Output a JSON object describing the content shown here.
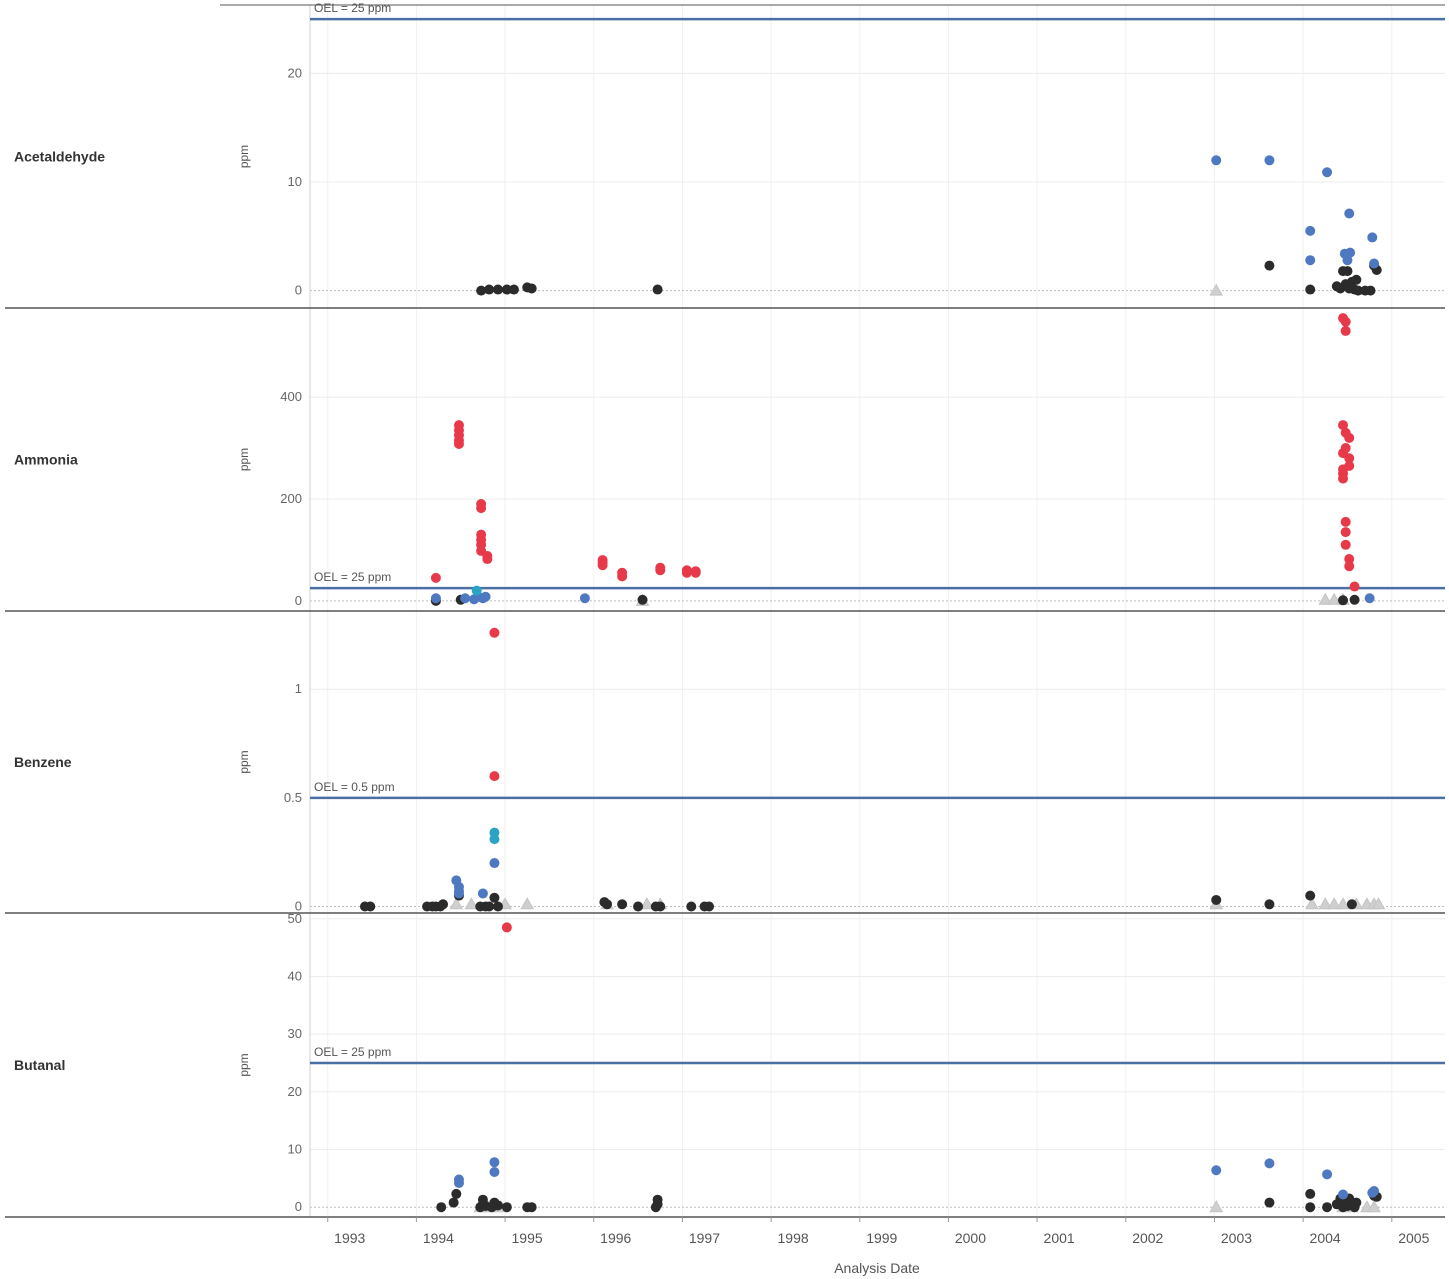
{
  "chart_data": {
    "type": "scatter",
    "xlabel": "Analysis Date",
    "xlim": [
      1992.8,
      2005.6
    ],
    "x_ticks": [
      "1993",
      "1994",
      "1995",
      "1996",
      "1997",
      "1998",
      "1999",
      "2000",
      "2001",
      "2002",
      "2003",
      "2004",
      "2005"
    ],
    "grid": true,
    "colors": {
      "black": "#2b2b2b",
      "blue": "#4e79c0",
      "teal": "#2aa3c4",
      "red": "#e8394a",
      "gray": "#cfcfcf",
      "oel_line": "#4a6fa5"
    },
    "panels": [
      {
        "name": "Acetaldehyde",
        "ylabel": "ppm",
        "ylim": [
          -1.6,
          26.3
        ],
        "yticks": [
          0,
          10,
          20
        ],
        "oel": 25,
        "oel_label": "OEL = 25 ppm",
        "series": {
          "black": [
            [
              1994.73,
              0
            ],
            [
              1994.82,
              0.1
            ],
            [
              1994.92,
              0.1
            ],
            [
              1995.02,
              0.1
            ],
            [
              1995.1,
              0.1
            ],
            [
              1995.25,
              0.3
            ],
            [
              1995.3,
              0.2
            ],
            [
              1996.72,
              0.1
            ],
            [
              2003.62,
              2.3
            ],
            [
              2004.08,
              0.1
            ],
            [
              2004.38,
              0.4
            ],
            [
              2004.42,
              0.2
            ],
            [
              2004.45,
              1.8
            ],
            [
              2004.48,
              0.6
            ],
            [
              2004.5,
              1.8
            ],
            [
              2004.52,
              0.2
            ],
            [
              2004.55,
              0.8
            ],
            [
              2004.58,
              0.1
            ],
            [
              2004.6,
              1
            ],
            [
              2004.62,
              0
            ],
            [
              2004.7,
              0
            ],
            [
              2004.76,
              0
            ],
            [
              2004.8,
              2.3
            ],
            [
              2004.83,
              1.9
            ]
          ],
          "blue": [
            [
              2003.02,
              12
            ],
            [
              2003.62,
              12
            ],
            [
              2004.08,
              5.5
            ],
            [
              2004.08,
              2.8
            ],
            [
              2004.27,
              10.9
            ],
            [
              2004.47,
              3.4
            ],
            [
              2004.5,
              2.8
            ],
            [
              2004.52,
              7.1
            ],
            [
              2004.53,
              3.5
            ],
            [
              2004.78,
              4.9
            ],
            [
              2004.8,
              2.5
            ]
          ],
          "teal": [],
          "red": [],
          "gray": [
            [
              2003.02,
              0
            ]
          ]
        }
      },
      {
        "name": "Ammonia",
        "ylabel": "ppm",
        "ylim": [
          -20,
          575
        ],
        "yticks": [
          0,
          200,
          400
        ],
        "oel": 25,
        "oel_label": "OEL = 25 ppm",
        "series": {
          "black": [
            [
              1994.22,
              0
            ],
            [
              1994.5,
              2
            ],
            [
              1996.55,
              2
            ],
            [
              2004.45,
              1
            ],
            [
              2004.58,
              2
            ]
          ],
          "blue": [
            [
              1994.22,
              5
            ],
            [
              1994.55,
              5
            ],
            [
              1994.65,
              3
            ],
            [
              1994.7,
              8
            ],
            [
              1994.75,
              5
            ],
            [
              1994.78,
              8
            ],
            [
              1995.9,
              5
            ],
            [
              2004.75,
              5
            ]
          ],
          "teal": [
            [
              1994.68,
              20
            ]
          ],
          "red": [
            [
              1994.22,
              45
            ],
            [
              1994.48,
              345
            ],
            [
              1994.48,
              335
            ],
            [
              1994.48,
              325
            ],
            [
              1994.48,
              315
            ],
            [
              1994.48,
              308
            ],
            [
              1994.73,
              190
            ],
            [
              1994.73,
              182
            ],
            [
              1994.73,
              130
            ],
            [
              1994.73,
              120
            ],
            [
              1994.73,
              110
            ],
            [
              1994.73,
              98
            ],
            [
              1994.8,
              88
            ],
            [
              1994.8,
              82
            ],
            [
              1996.1,
              80
            ],
            [
              1996.1,
              75
            ],
            [
              1996.1,
              70
            ],
            [
              1996.32,
              55
            ],
            [
              1996.32,
              48
            ],
            [
              1996.75,
              65
            ],
            [
              1996.75,
              60
            ],
            [
              1997.05,
              60
            ],
            [
              1997.05,
              55
            ],
            [
              1997.15,
              58
            ],
            [
              1997.15,
              55
            ],
            [
              2004.45,
              555
            ],
            [
              2004.48,
              548
            ],
            [
              2004.48,
              530
            ],
            [
              2004.45,
              345
            ],
            [
              2004.48,
              330
            ],
            [
              2004.52,
              320
            ],
            [
              2004.48,
              300
            ],
            [
              2004.45,
              290
            ],
            [
              2004.52,
              280
            ],
            [
              2004.52,
              265
            ],
            [
              2004.45,
              258
            ],
            [
              2004.45,
              250
            ],
            [
              2004.45,
              240
            ],
            [
              2004.48,
              155
            ],
            [
              2004.48,
              135
            ],
            [
              2004.48,
              110
            ],
            [
              2004.52,
              82
            ],
            [
              2004.52,
              68
            ],
            [
              2004.58,
              28
            ]
          ],
          "gray": [
            [
              1996.55,
              0
            ],
            [
              2004.25,
              2
            ],
            [
              2004.35,
              2
            ],
            [
              2004.45,
              2
            ]
          ]
        }
      },
      {
        "name": "Benzene",
        "ylabel": "ppm",
        "ylim": [
          -0.03,
          1.36
        ],
        "yticks": [
          0,
          0.5,
          1
        ],
        "oel": 0.5,
        "oel_label": "OEL = 0.5 ppm",
        "series": {
          "black": [
            [
              1993.42,
              0
            ],
            [
              1993.48,
              0
            ],
            [
              1994.12,
              0
            ],
            [
              1994.18,
              0
            ],
            [
              1994.22,
              0
            ],
            [
              1994.27,
              0
            ],
            [
              1994.3,
              0.01
            ],
            [
              1994.48,
              0.05
            ],
            [
              1994.72,
              0
            ],
            [
              1994.78,
              0
            ],
            [
              1994.82,
              0
            ],
            [
              1994.88,
              0.04
            ],
            [
              1994.92,
              0
            ],
            [
              1996.12,
              0.02
            ],
            [
              1996.15,
              0.01
            ],
            [
              1996.32,
              0.01
            ],
            [
              1996.5,
              0
            ],
            [
              1996.7,
              0
            ],
            [
              1996.75,
              0
            ],
            [
              1997.1,
              0
            ],
            [
              1997.25,
              0
            ],
            [
              1997.3,
              0
            ],
            [
              2003.02,
              0.03
            ],
            [
              2003.62,
              0.01
            ],
            [
              2004.08,
              0.05
            ],
            [
              2004.55,
              0.01
            ]
          ],
          "blue": [
            [
              1994.45,
              0.12
            ],
            [
              1994.48,
              0.09
            ],
            [
              1994.48,
              0.07
            ],
            [
              1994.48,
              0.06
            ],
            [
              1994.75,
              0.06
            ],
            [
              1994.88,
              0.2
            ]
          ],
          "teal": [
            [
              1994.88,
              0.34
            ],
            [
              1994.88,
              0.31
            ]
          ],
          "red": [
            [
              1994.88,
              1.26
            ],
            [
              1994.88,
              0.6
            ]
          ],
          "gray": [
            [
              1994.45,
              0.01
            ],
            [
              1994.62,
              0.01
            ],
            [
              1995.0,
              0.01
            ],
            [
              1995.25,
              0.01
            ],
            [
              1996.15,
              0.01
            ],
            [
              1996.6,
              0.01
            ],
            [
              1996.75,
              0.01
            ],
            [
              2003.02,
              0.01
            ],
            [
              2004.1,
              0.01
            ],
            [
              2004.25,
              0.01
            ],
            [
              2004.35,
              0.01
            ],
            [
              2004.45,
              0.01
            ],
            [
              2004.6,
              0.01
            ],
            [
              2004.72,
              0.01
            ],
            [
              2004.8,
              0.01
            ],
            [
              2004.85,
              0.01
            ]
          ]
        }
      },
      {
        "name": "Butanal",
        "ylabel": "ppm",
        "ylim": [
          -1.7,
          51
        ],
        "yticks": [
          0,
          10,
          20,
          30,
          40,
          50
        ],
        "oel": 25,
        "oel_label": "OEL = 25 ppm",
        "series": {
          "black": [
            [
              1994.28,
              0
            ],
            [
              1994.42,
              0.8
            ],
            [
              1994.45,
              2.3
            ],
            [
              1994.72,
              0
            ],
            [
              1994.75,
              0.5
            ],
            [
              1994.75,
              1.3
            ],
            [
              1994.78,
              0.2
            ],
            [
              1994.85,
              0
            ],
            [
              1994.88,
              0.8
            ],
            [
              1994.92,
              0.3
            ],
            [
              1995.02,
              0
            ],
            [
              1995.25,
              0
            ],
            [
              1995.3,
              0
            ],
            [
              1996.7,
              0
            ],
            [
              1996.72,
              0.5
            ],
            [
              1996.72,
              1.3
            ],
            [
              2003.62,
              0.8
            ],
            [
              2004.08,
              0
            ],
            [
              2004.08,
              2.3
            ],
            [
              2004.27,
              0
            ],
            [
              2004.38,
              0.5
            ],
            [
              2004.42,
              1.5
            ],
            [
              2004.45,
              0
            ],
            [
              2004.48,
              0.8
            ],
            [
              2004.5,
              0.2
            ],
            [
              2004.52,
              1.5
            ],
            [
              2004.55,
              0.5
            ],
            [
              2004.58,
              0
            ],
            [
              2004.6,
              0.8
            ],
            [
              2004.8,
              2
            ],
            [
              2004.83,
              1.8
            ]
          ],
          "blue": [
            [
              1994.48,
              4.8
            ],
            [
              1994.48,
              4.2
            ],
            [
              1994.88,
              7.8
            ],
            [
              1994.88,
              6.1
            ],
            [
              2003.02,
              6.4
            ],
            [
              2003.62,
              7.6
            ],
            [
              2004.27,
              5.7
            ],
            [
              2004.45,
              2.2
            ],
            [
              2004.78,
              2.5
            ],
            [
              2004.8,
              2.8
            ]
          ],
          "teal": [],
          "red": [
            [
              1995.02,
              48.5
            ]
          ],
          "gray": [
            [
              1994.72,
              0
            ],
            [
              1994.82,
              0
            ],
            [
              1994.95,
              0
            ],
            [
              2003.02,
              0
            ],
            [
              2004.45,
              0
            ],
            [
              2004.55,
              0
            ],
            [
              2004.72,
              0
            ],
            [
              2004.8,
              0
            ]
          ]
        }
      }
    ]
  }
}
